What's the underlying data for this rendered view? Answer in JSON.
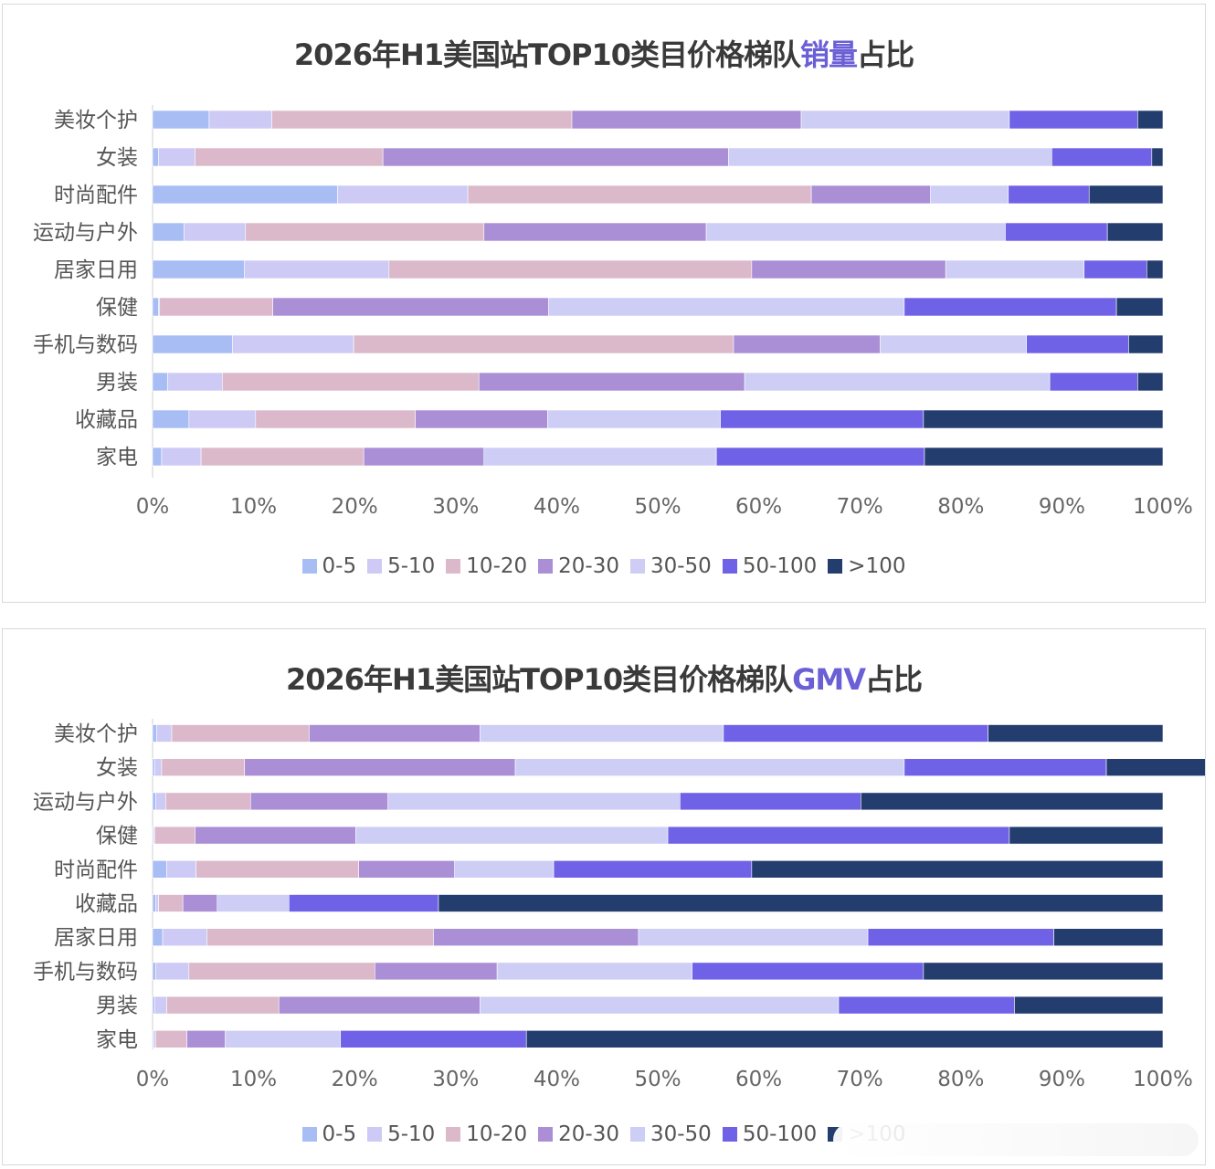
{
  "colors": [
    "#a9bdf5",
    "#cdcaf5",
    "#dbb9ca",
    "#aa8fd6",
    "#cdcdf5",
    "#7062e6",
    "#233d6e"
  ],
  "chart_data": [
    {
      "type": "bar",
      "orientation": "horizontal",
      "stacked": "percent",
      "title_prefix": "2026年H1美国站TOP10类目价格梯队",
      "title_highlight": "销量",
      "title_suffix": "占比",
      "xlim": [
        0,
        100
      ],
      "x_ticks": [
        "0%",
        "10%",
        "20%",
        "30%",
        "40%",
        "50%",
        "60%",
        "70%",
        "80%",
        "90%",
        "100%"
      ],
      "legend_position": "bottom",
      "categories": [
        "美妆个护",
        "女装",
        "时尚配件",
        "运动与户外",
        "居家日用",
        "保健",
        "手机与数码",
        "男装",
        "收藏品",
        "家电"
      ],
      "series": [
        {
          "name": "0-5",
          "values": [
            5.6,
            0.6,
            18.3,
            3.1,
            9.1,
            0.6,
            7.9,
            1.5,
            3.6,
            0.9
          ]
        },
        {
          "name": "5-10",
          "values": [
            6.2,
            3.6,
            12.9,
            6.1,
            14.3,
            0.1,
            12.0,
            5.4,
            6.6,
            3.9
          ]
        },
        {
          "name": "10-20",
          "values": [
            29.7,
            18.6,
            34.0,
            23.6,
            35.9,
            11.2,
            37.6,
            25.4,
            15.8,
            16.1
          ]
        },
        {
          "name": "20-30",
          "values": [
            22.7,
            34.2,
            11.8,
            22.0,
            19.2,
            27.3,
            14.5,
            26.3,
            13.1,
            11.9
          ]
        },
        {
          "name": "30-50",
          "values": [
            20.6,
            32.0,
            7.7,
            29.6,
            13.7,
            35.2,
            14.5,
            30.2,
            17.1,
            23.0
          ]
        },
        {
          "name": "50-100",
          "values": [
            12.7,
            9.9,
            8.0,
            10.1,
            6.2,
            21.0,
            10.1,
            8.7,
            20.1,
            20.6
          ]
        },
        {
          "name": ">100",
          "values": [
            2.5,
            1.1,
            7.3,
            5.5,
            1.6,
            4.6,
            3.4,
            2.5,
            23.7,
            23.6
          ]
        }
      ]
    },
    {
      "type": "bar",
      "orientation": "horizontal",
      "stacked": "percent",
      "title_prefix": "2026年H1美国站TOP10类目价格梯队",
      "title_highlight": "GMV",
      "title_suffix": "占比",
      "xlim": [
        0,
        100
      ],
      "x_ticks": [
        "0%",
        "10%",
        "20%",
        "30%",
        "40%",
        "50%",
        "60%",
        "70%",
        "80%",
        "90%",
        "100%"
      ],
      "legend_position": "bottom",
      "categories": [
        "美妆个护",
        "女装",
        "运动与户外",
        "保健",
        "时尚配件",
        "收藏品",
        "居家日用",
        "手机与数码",
        "男装",
        "家电"
      ],
      "series": [
        {
          "name": "0-5",
          "values": [
            0.4,
            0.2,
            0.3,
            0.1,
            1.4,
            0.3,
            1.0,
            0.3,
            0.2,
            0.1
          ]
        },
        {
          "name": "5-10",
          "values": [
            1.5,
            0.7,
            1.0,
            0.1,
            2.9,
            0.3,
            4.4,
            3.3,
            1.2,
            0.2
          ]
        },
        {
          "name": "10-20",
          "values": [
            13.6,
            8.2,
            8.4,
            4.0,
            16.1,
            2.4,
            22.4,
            18.4,
            11.1,
            3.1
          ]
        },
        {
          "name": "20-30",
          "values": [
            16.9,
            26.8,
            13.6,
            15.9,
            9.5,
            3.4,
            20.3,
            12.1,
            19.9,
            3.8
          ]
        },
        {
          "name": "30-50",
          "values": [
            24.1,
            38.5,
            28.9,
            30.9,
            9.8,
            7.1,
            22.7,
            19.3,
            35.5,
            11.4
          ]
        },
        {
          "name": "50-100",
          "values": [
            26.2,
            20.0,
            17.9,
            33.8,
            19.6,
            14.8,
            18.4,
            22.9,
            17.4,
            18.4
          ]
        },
        {
          "name": ">100",
          "values": [
            17.3,
            15.6,
            29.9,
            15.2,
            40.7,
            71.7,
            10.8,
            23.7,
            14.7,
            63.0
          ]
        }
      ]
    }
  ]
}
